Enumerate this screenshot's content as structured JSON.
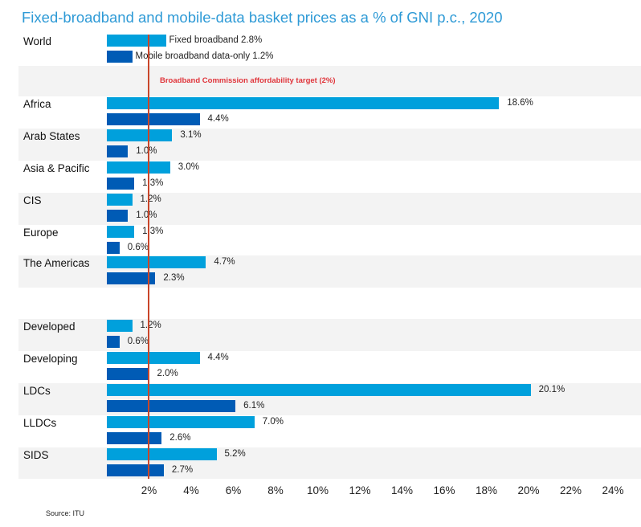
{
  "chart_data": {
    "type": "bar",
    "orientation": "horizontal",
    "title": "Fixed-broadband and mobile-data basket prices as a % of GNI p.c., 2020",
    "xlabel": "",
    "ylabel": "",
    "xlim": [
      0,
      24
    ],
    "x_ticks": [
      "2%",
      "4%",
      "6%",
      "8%",
      "10%",
      "12%",
      "14%",
      "16%",
      "18%",
      "20%",
      "22%",
      "24%"
    ],
    "series": [
      {
        "name": "Fixed broadband",
        "color": "#00a0dc"
      },
      {
        "name": "Mobile broadband data-only",
        "color": "#005bb5"
      }
    ],
    "categories": [
      "World",
      "Africa",
      "Arab States",
      "Asia & Pacific",
      "CIS",
      "Europe",
      "The Americas",
      "Developed",
      "Developing",
      "LDCs",
      "LLDCs",
      "SIDS"
    ],
    "values": {
      "Fixed broadband": [
        2.8,
        18.6,
        3.1,
        3.0,
        1.2,
        1.3,
        4.7,
        1.2,
        4.4,
        20.1,
        7.0,
        5.2
      ],
      "Mobile broadband data-only": [
        1.2,
        4.4,
        1.0,
        1.3,
        1.0,
        0.6,
        2.3,
        0.6,
        2.0,
        6.1,
        2.6,
        2.7
      ]
    },
    "value_labels": {
      "Fixed broadband": [
        "2.8%",
        "18.6%",
        "3.1%",
        "3.0%",
        "1.2%",
        "1.3%",
        "4.7%",
        "1.2%",
        "4.4%",
        "20.1%",
        "7.0%",
        "5.2%"
      ],
      "Mobile broadband data-only": [
        "1.2%",
        "4.4%",
        "1.0%",
        "1.3%",
        "1.0%",
        "0.6%",
        "2.3%",
        "0.6%",
        "2.0%",
        "6.1%",
        "2.6%",
        "2.7%"
      ]
    },
    "reference_line": {
      "value": 2,
      "label": "Broadband Commission affordability target (2%)",
      "color": "#c9462a"
    },
    "source": "Source: ITU"
  }
}
